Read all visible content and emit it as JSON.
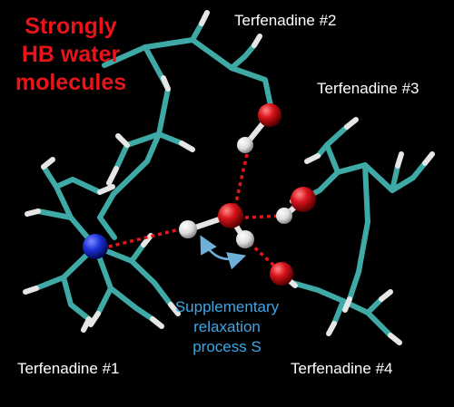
{
  "title_lines": [
    "Strongly",
    "HB water",
    "molecules"
  ],
  "labels": {
    "t1": "Terfenadine #1",
    "t2": "Terfenadine #2",
    "t3": "Terfenadine #3",
    "t4": "Terfenadine #4"
  },
  "process_lines": [
    "Supplementary",
    "relaxation",
    "process S"
  ],
  "colors": {
    "background": "#000000",
    "carbon_bond": "#3fa9a6",
    "hydrogen": "#e6e6e6",
    "oxygen": "#d8141a",
    "nitrogen": "#1a2fd6",
    "hydrogen_bond": "#e8141a",
    "title_text": "#e8141a",
    "process_text": "#3ea6e6",
    "label_text": "#ffffff",
    "arrow": "#6fb0d8"
  }
}
